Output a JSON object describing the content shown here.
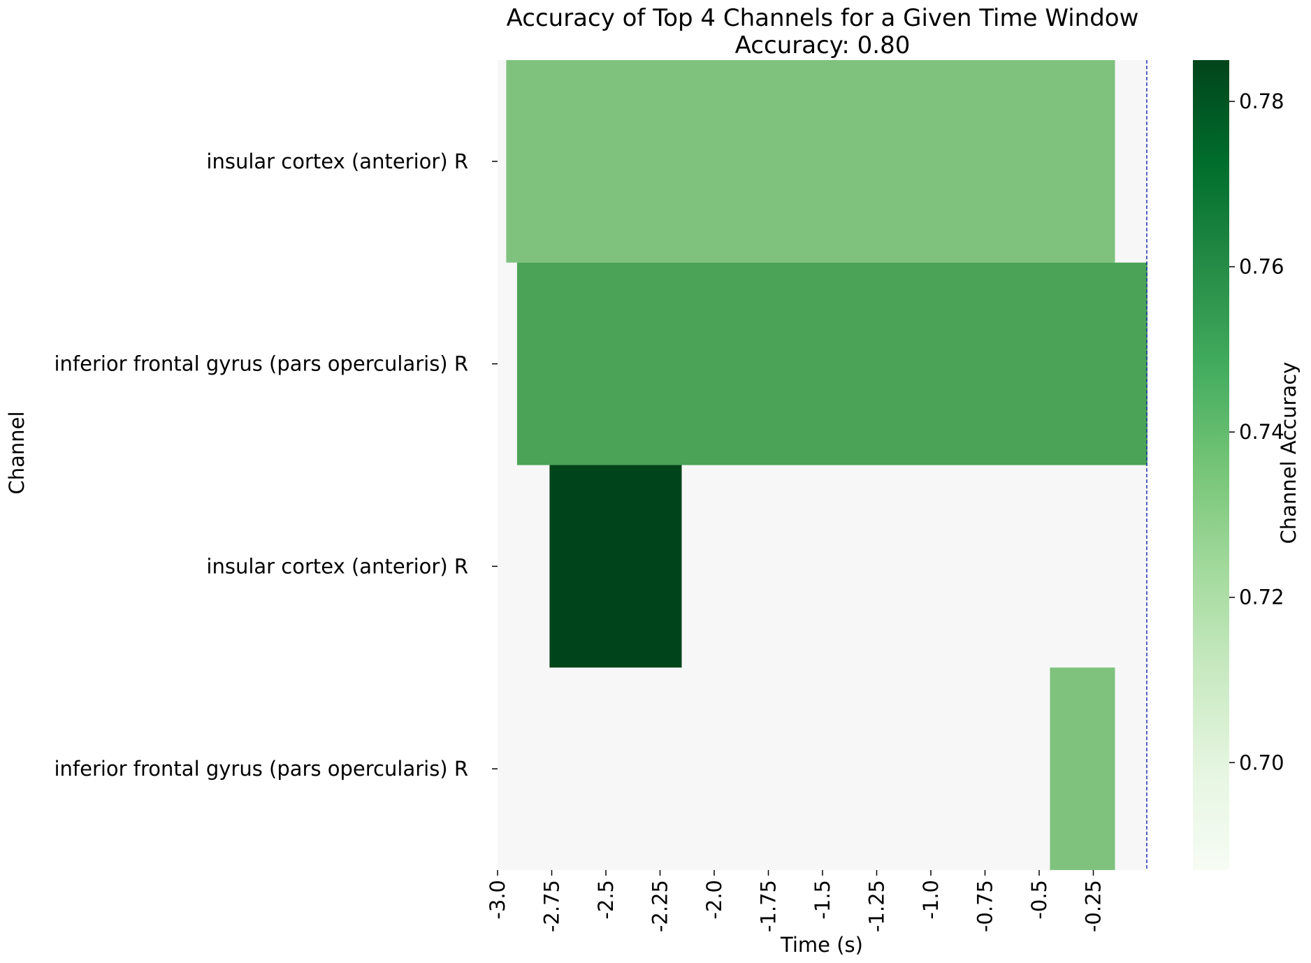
{
  "chart_data": {
    "type": "heatmap",
    "title": "Accuracy of Top 4 Channels for a Given Time Window",
    "subtitle": "Accuracy: 0.80",
    "xlabel": "Time (s)",
    "ylabel": "Channel",
    "xlim": [
      -3.0,
      0.0
    ],
    "x_ticks": [
      -3.0,
      -2.75,
      -2.5,
      -2.25,
      -2.0,
      -1.75,
      -1.5,
      -1.25,
      -1.0,
      -0.75,
      -0.5,
      -0.25
    ],
    "x_tick_labels": [
      "-3.0",
      "-2.75",
      "-2.5",
      "-2.25",
      "-2.0",
      "-1.75",
      "-1.5",
      "-1.25",
      "-1.0",
      "-0.75",
      "-0.5",
      "-0.25"
    ],
    "channels": [
      "insular cortex (anterior) R",
      "inferior frontal gyrus (pars opercularis) R",
      "insular cortex (anterior) R",
      "inferior frontal gyrus (pars opercularis) R"
    ],
    "background_color": "#f7f7f7",
    "cells": [
      {
        "channel_index": 0,
        "t_start": -2.96,
        "t_end": -0.15,
        "accuracy": 0.74,
        "color": "#7fc27e"
      },
      {
        "channel_index": 1,
        "t_start": -2.91,
        "t_end": 0.0,
        "accuracy": 0.75,
        "color": "#4aa356"
      },
      {
        "channel_index": 2,
        "t_start": -2.76,
        "t_end": -2.15,
        "accuracy": 0.785,
        "color": "#00441b"
      },
      {
        "channel_index": 3,
        "t_start": -0.45,
        "t_end": -0.15,
        "accuracy": 0.74,
        "color": "#7fc27e"
      }
    ],
    "reference_line": {
      "x": 0.0,
      "color": "#1f2fb0",
      "style": "dashed"
    },
    "colorbar": {
      "label": "Channel Accuracy",
      "range": [
        0.687,
        0.785
      ],
      "ticks": [
        0.7,
        0.72,
        0.74,
        0.76,
        0.78
      ],
      "tick_labels": [
        "0.70",
        "0.72",
        "0.74",
        "0.76",
        "0.78"
      ],
      "colormap": "Greens",
      "colors": [
        "#f7fcf5",
        "#e5f5e0",
        "#c7e9c0",
        "#a1d99b",
        "#74c476",
        "#41ab5d",
        "#238b45",
        "#006d2c",
        "#00441b"
      ]
    }
  }
}
